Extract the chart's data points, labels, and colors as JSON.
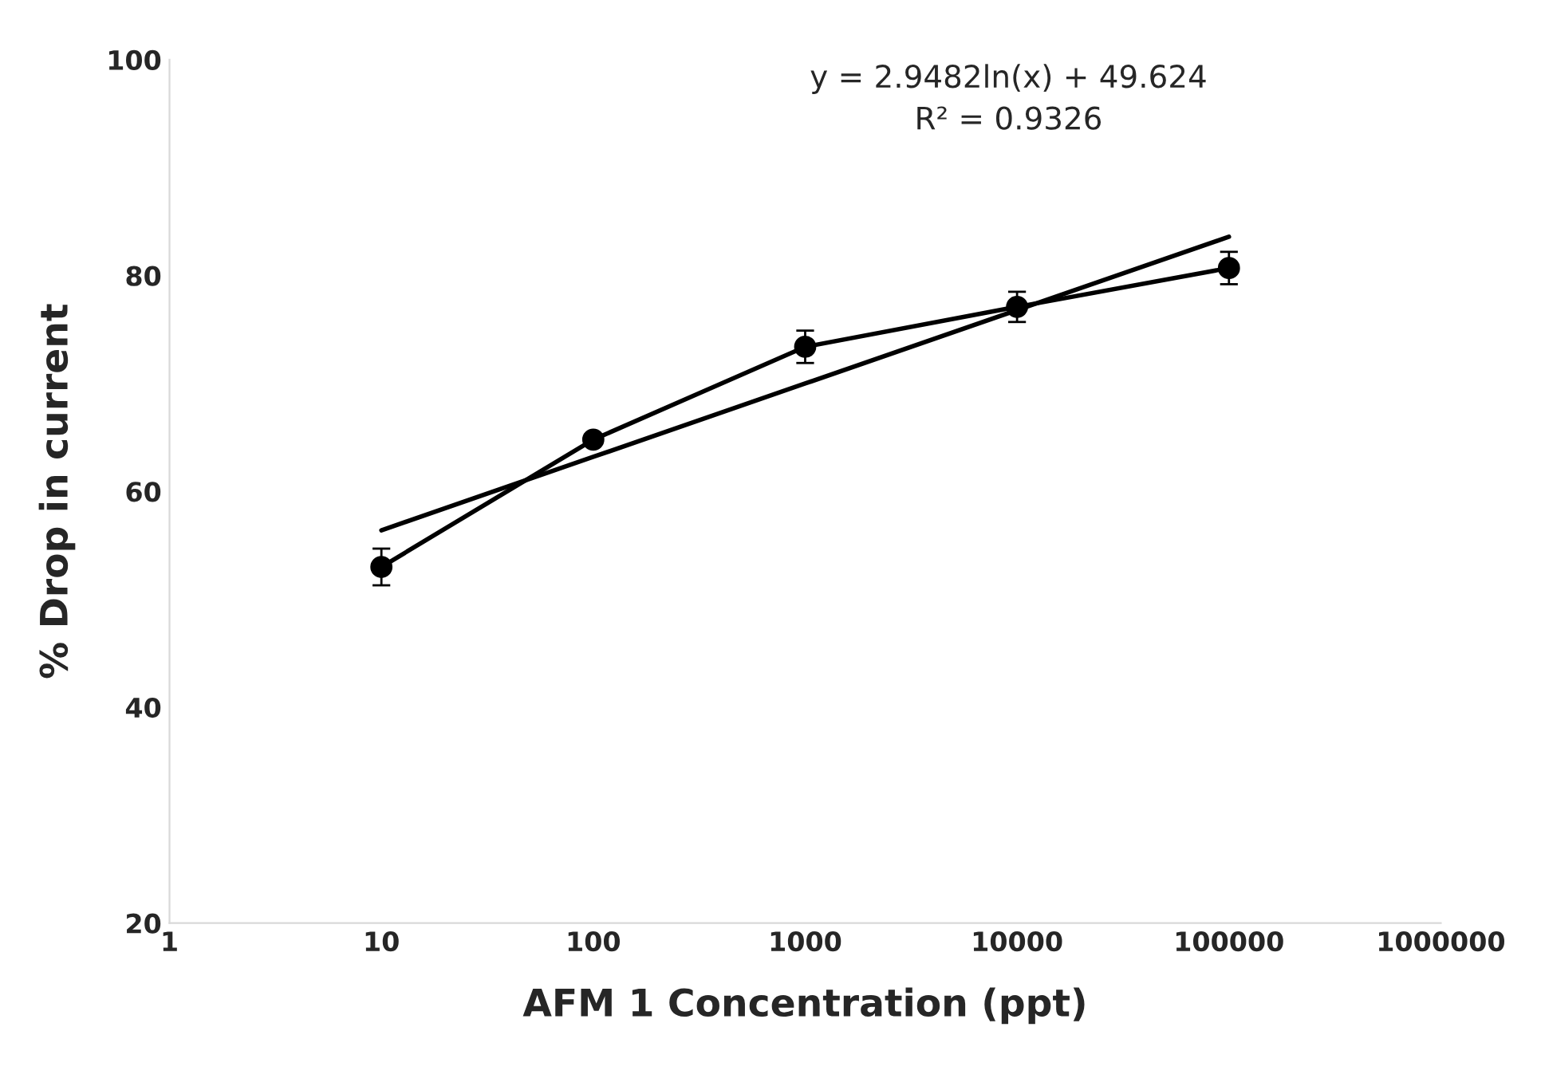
{
  "chart_data": {
    "type": "line",
    "xlabel": "AFM 1 Concentration (ppt)",
    "ylabel": "% Drop in current",
    "log": "x",
    "xlim": [
      1,
      1000000
    ],
    "xticks": [
      1,
      10,
      100,
      1000,
      10000,
      100000,
      1000000
    ],
    "ylim": [
      20,
      100
    ],
    "yticks": [
      20,
      40,
      60,
      80,
      100
    ],
    "series": [
      {
        "color": "#000000",
        "marker": "circle",
        "x": [
          10,
          100,
          1000,
          10000,
          100000
        ],
        "values": [
          53.0,
          64.8,
          73.4,
          77.1,
          80.7
        ],
        "errors": [
          1.7,
          0.5,
          1.5,
          1.4,
          1.5
        ]
      },
      {
        "color": "#000000",
        "marker": "none",
        "x": [
          10,
          100,
          1000,
          10000,
          100000
        ],
        "values": [
          56.4,
          63.2,
          70.0,
          76.8,
          83.6
        ]
      }
    ],
    "annotations": [
      "y = 2.9482ln(x) + 49.624\nR² = 0.9326"
    ]
  }
}
